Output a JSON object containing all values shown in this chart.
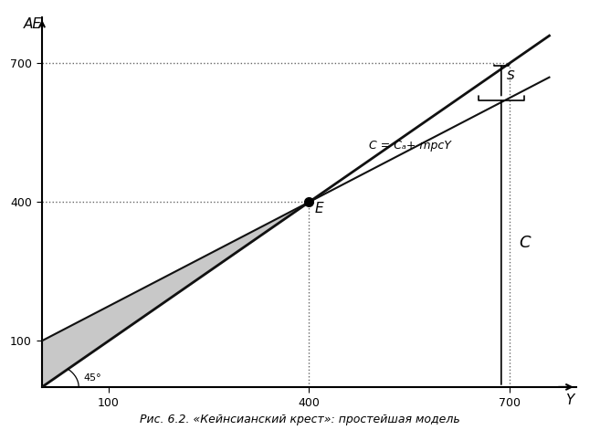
{
  "title": "Рис. 6.2. «Кейнсианский крест»: простейшая модель",
  "xlabel": "Y",
  "ylabel": "AE",
  "xlim": [
    0,
    800
  ],
  "ylim": [
    0,
    800
  ],
  "xticks": [
    100,
    400,
    700
  ],
  "yticks": [
    100,
    400,
    700
  ],
  "C_a": 100,
  "mpc": 0.75,
  "equilibrium_x": 400,
  "equilibrium_y": 400,
  "S_x": 700,
  "line45_color": "#111111",
  "consumption_line_color": "#111111",
  "dotted_color": "#666666",
  "shaded_color": "#bbbbbb",
  "background_color": "#ffffff",
  "angle_label": "45°",
  "S_label": "S",
  "E_label": "E",
  "C_label": "C",
  "C_line_label": "C = Cₐ+ mpcY",
  "title_fontsize": 9,
  "axis_label_fontsize": 11
}
